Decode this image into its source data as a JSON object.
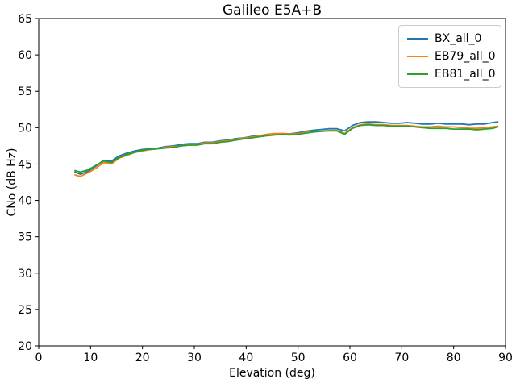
{
  "chart_data": {
    "type": "line",
    "title": "Galileo E5A+B",
    "xlabel": "Elevation (deg)",
    "ylabel": "CNo (dB Hz)",
    "xlim": [
      0,
      90
    ],
    "ylim": [
      20,
      65
    ],
    "xticks": [
      0,
      10,
      20,
      30,
      40,
      50,
      60,
      70,
      80,
      90
    ],
    "yticks": [
      20,
      25,
      30,
      35,
      40,
      45,
      50,
      55,
      60,
      65
    ],
    "grid": false,
    "legend_position": "upper right",
    "x": [
      7,
      8,
      9.5,
      11,
      12.5,
      14,
      15.5,
      17,
      18.5,
      20,
      21.5,
      23,
      24.5,
      26,
      27.5,
      29,
      30.5,
      32,
      33.5,
      35,
      36.5,
      38,
      39.5,
      41,
      42.5,
      44,
      45.5,
      47,
      48.5,
      50,
      51.5,
      53,
      54.5,
      56,
      57.5,
      59,
      60.5,
      62,
      63.5,
      65,
      66.5,
      68,
      69.5,
      71,
      72.5,
      74,
      75.5,
      77,
      78.5,
      80,
      81.5,
      83,
      84.5,
      86,
      87.5,
      88.5
    ],
    "series": [
      {
        "name": "BX_all_0",
        "color": "#1f77b4",
        "values": [
          43.9,
          43.6,
          44.0,
          44.7,
          45.5,
          45.4,
          46.1,
          46.5,
          46.8,
          47.0,
          47.1,
          47.2,
          47.4,
          47.5,
          47.7,
          47.8,
          47.8,
          48.0,
          48.0,
          48.2,
          48.3,
          48.5,
          48.6,
          48.8,
          48.9,
          49.05,
          49.15,
          49.2,
          49.15,
          49.3,
          49.5,
          49.65,
          49.75,
          49.85,
          49.85,
          49.55,
          50.3,
          50.7,
          50.8,
          50.8,
          50.7,
          50.6,
          50.6,
          50.7,
          50.6,
          50.5,
          50.5,
          50.6,
          50.5,
          50.5,
          50.5,
          50.4,
          50.5,
          50.5,
          50.7,
          50.8
        ]
      },
      {
        "name": "EB79_all_0",
        "color": "#ff7f0e",
        "values": [
          43.5,
          43.3,
          43.8,
          44.4,
          45.2,
          45.0,
          45.8,
          46.2,
          46.6,
          46.8,
          47.0,
          47.1,
          47.3,
          47.4,
          47.5,
          47.6,
          47.7,
          47.9,
          47.9,
          48.1,
          48.2,
          48.4,
          48.55,
          48.7,
          48.85,
          49.1,
          49.2,
          49.2,
          49.1,
          49.2,
          49.35,
          49.45,
          49.5,
          49.6,
          49.6,
          49.2,
          50.0,
          50.4,
          50.5,
          50.4,
          50.4,
          50.3,
          50.3,
          50.3,
          50.2,
          50.1,
          50.1,
          50.2,
          50.1,
          50.1,
          50.0,
          49.9,
          49.9,
          50.0,
          50.1,
          50.2
        ]
      },
      {
        "name": "EB81_all_0",
        "color": "#2ca02c",
        "values": [
          44.1,
          43.9,
          44.2,
          44.8,
          45.4,
          45.2,
          45.9,
          46.3,
          46.6,
          46.9,
          47.0,
          47.1,
          47.2,
          47.3,
          47.5,
          47.6,
          47.6,
          47.8,
          47.8,
          48.0,
          48.1,
          48.3,
          48.45,
          48.6,
          48.75,
          48.9,
          49.0,
          49.05,
          49.0,
          49.1,
          49.25,
          49.4,
          49.5,
          49.55,
          49.55,
          49.1,
          49.9,
          50.3,
          50.4,
          50.3,
          50.3,
          50.2,
          50.2,
          50.2,
          50.1,
          50.0,
          49.9,
          49.9,
          49.9,
          49.8,
          49.8,
          49.8,
          49.7,
          49.8,
          49.9,
          50.1
        ]
      }
    ]
  }
}
